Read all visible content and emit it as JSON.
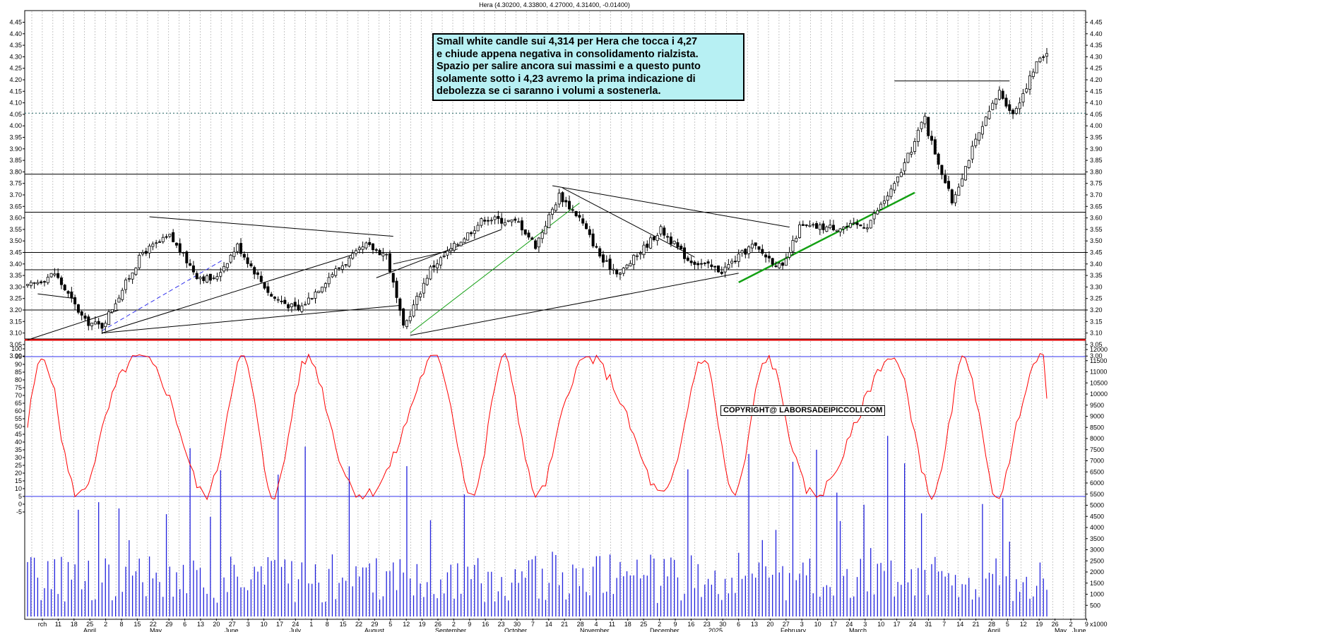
{
  "header": {
    "title": "Hera (4.30200, 4.33800, 4.27000, 4.31400, -0.01400)"
  },
  "annotation": {
    "lines": [
      "Small white candle sui 4,314 per Hera che tocca i 4,27",
      "e chiude appena negativa in consolidamento rialzista.",
      "Spazio per salire ancora sui massimi e a questo punto",
      "solamente sotto i 4,23 avremo la prima indicazione di",
      "debolezza se ci saranno i volumi a sostenerla."
    ]
  },
  "copyright": "COPYRIGHT@ LABORSADEIPICCOLI.COM",
  "colors": {
    "candles": "#000000",
    "support": "#ff0000",
    "trend_green": "#13a013",
    "oscillator": "#ff0000",
    "volume": "#2222dd",
    "levels": "#000000"
  },
  "chart_data": [
    {
      "type": "candlestick",
      "title": "Hera (4.30200, 4.33800, 4.27000, 4.31400, -0.01400)",
      "last": {
        "open": 4.302,
        "high": 4.338,
        "low": 4.27,
        "close": 4.314,
        "change": -0.014
      },
      "ylim": [
        2.95,
        4.5
      ],
      "y_ticks": [
        "3.00",
        "3.05",
        "3.10",
        "3.15",
        "3.20",
        "3.25",
        "3.30",
        "3.35",
        "3.40",
        "3.45",
        "3.50",
        "3.55",
        "3.60",
        "3.65",
        "3.70",
        "3.75",
        "3.80",
        "3.85",
        "3.90",
        "3.95",
        "4.00",
        "4.05",
        "4.10",
        "4.15",
        "4.20",
        "4.25",
        "4.30",
        "4.35",
        "4.40",
        "4.45"
      ],
      "horizontal_levels": [
        3.2,
        3.375,
        3.45,
        3.625,
        3.79
      ],
      "support_level": 3.07,
      "dotted_level": 4.055,
      "path_points": [
        {
          "t": 0,
          "p": 3.3
        },
        {
          "t": 8,
          "p": 3.36
        },
        {
          "t": 17,
          "p": 3.15
        },
        {
          "t": 22,
          "p": 3.13
        },
        {
          "t": 34,
          "p": 3.45
        },
        {
          "t": 42,
          "p": 3.52
        },
        {
          "t": 50,
          "p": 3.35
        },
        {
          "t": 55,
          "p": 3.33
        },
        {
          "t": 62,
          "p": 3.48
        },
        {
          "t": 72,
          "p": 3.26
        },
        {
          "t": 80,
          "p": 3.2
        },
        {
          "t": 90,
          "p": 3.36
        },
        {
          "t": 100,
          "p": 3.48
        },
        {
          "t": 106,
          "p": 3.44
        },
        {
          "t": 111,
          "p": 3.12
        },
        {
          "t": 119,
          "p": 3.38
        },
        {
          "t": 135,
          "p": 3.6
        },
        {
          "t": 145,
          "p": 3.58
        },
        {
          "t": 150,
          "p": 3.48
        },
        {
          "t": 157,
          "p": 3.7
        },
        {
          "t": 163,
          "p": 3.6
        },
        {
          "t": 170,
          "p": 3.41
        },
        {
          "t": 175,
          "p": 3.36
        },
        {
          "t": 187,
          "p": 3.55
        },
        {
          "t": 195,
          "p": 3.42
        },
        {
          "t": 205,
          "p": 3.37
        },
        {
          "t": 214,
          "p": 3.48
        },
        {
          "t": 223,
          "p": 3.38
        },
        {
          "t": 228,
          "p": 3.56
        },
        {
          "t": 240,
          "p": 3.56
        },
        {
          "t": 248,
          "p": 3.57
        },
        {
          "t": 256,
          "p": 3.74
        },
        {
          "t": 262,
          "p": 3.93
        },
        {
          "t": 265,
          "p": 4.05
        },
        {
          "t": 266,
          "p": 3.97
        },
        {
          "t": 273,
          "p": 3.67
        },
        {
          "t": 279,
          "p": 3.9
        },
        {
          "t": 287,
          "p": 4.15
        },
        {
          "t": 291,
          "p": 4.05
        },
        {
          "t": 299,
          "p": 4.3
        },
        {
          "t": 301,
          "p": 4.314
        }
      ],
      "x_tick_labels": [
        "rch",
        "11",
        "18",
        "25",
        "2",
        "8",
        "15",
        "22",
        "29",
        "6",
        "13",
        "20",
        "27",
        "3",
        "10",
        "17",
        "24",
        "1",
        "8",
        "15",
        "22",
        "29",
        "5",
        "12",
        "19",
        "26",
        "2",
        "9",
        "16",
        "23",
        "30",
        "7",
        "14",
        "21",
        "28",
        "4",
        "11",
        "18",
        "25",
        "2",
        "9",
        "16",
        "23",
        "30",
        "6",
        "13",
        "20",
        "27",
        "3",
        "10",
        "17",
        "24",
        "3",
        "10",
        "17",
        "24",
        "31",
        "7",
        "14",
        "21",
        "28",
        "5",
        "12",
        "19",
        "26",
        "2",
        "9"
      ],
      "month_labels": [
        "April",
        "May",
        "June",
        "July",
        "August",
        "September",
        "October",
        "November",
        "December",
        "2025",
        "February",
        "March",
        "April",
        "May",
        "June"
      ]
    },
    {
      "type": "line",
      "name": "oscillator",
      "ylim": [
        -5,
        105
      ],
      "y_ticks": [
        "-5",
        "0",
        "5",
        "10",
        "15",
        "20",
        "25",
        "30",
        "35",
        "40",
        "45",
        "50",
        "55",
        "60",
        "65",
        "70",
        "75",
        "80",
        "85",
        "90",
        "95",
        "100"
      ],
      "levels": [
        95,
        5
      ]
    },
    {
      "type": "bar",
      "name": "volume",
      "ylim": [
        0,
        12000
      ],
      "y_ticks": [
        "500",
        "1000",
        "1500",
        "2000",
        "2500",
        "3000",
        "3500",
        "4000",
        "4500",
        "5000",
        "5500",
        "6000",
        "6500",
        "7000",
        "7500",
        "8000",
        "8500",
        "9000",
        "9500",
        "10000",
        "10500",
        "11000",
        "11500",
        "12000"
      ],
      "unit_label": "x1000"
    }
  ]
}
